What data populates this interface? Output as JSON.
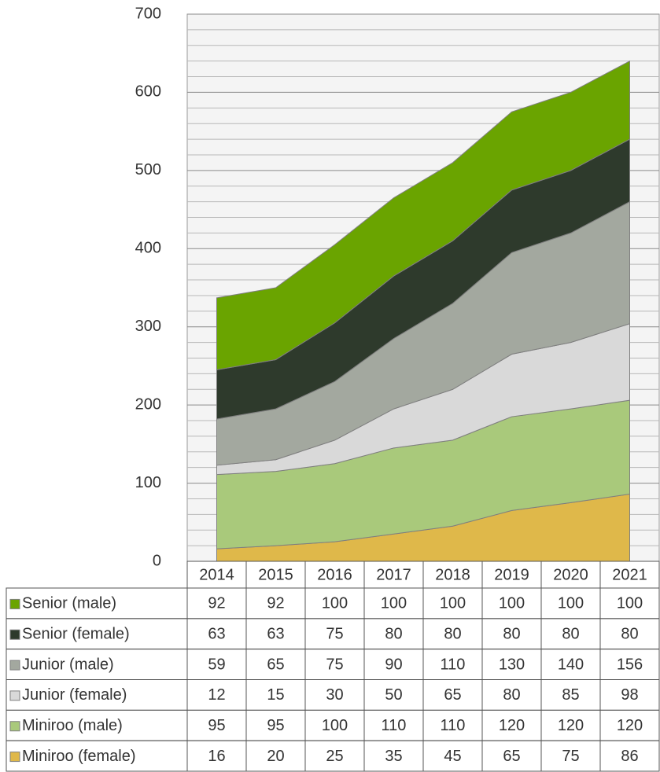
{
  "chart_data": {
    "type": "stacked_area",
    "categories": [
      "2014",
      "2015",
      "2016",
      "2017",
      "2018",
      "2019",
      "2020",
      "2021"
    ],
    "series": [
      {
        "name": "Senior (male)",
        "color": "#6aa400",
        "values": [
          92,
          92,
          100,
          100,
          100,
          100,
          100,
          100
        ]
      },
      {
        "name": "Senior (female)",
        "color": "#2e3a2c",
        "values": [
          63,
          63,
          75,
          80,
          80,
          80,
          80,
          80
        ]
      },
      {
        "name": "Junior (male)",
        "color": "#a3a89f",
        "values": [
          59,
          65,
          75,
          90,
          110,
          130,
          140,
          156
        ]
      },
      {
        "name": "Junior (female)",
        "color": "#d9d9d9",
        "values": [
          12,
          15,
          30,
          50,
          65,
          80,
          85,
          98
        ]
      },
      {
        "name": "Miniroo (male)",
        "color": "#a9c97b",
        "values": [
          95,
          95,
          100,
          110,
          110,
          120,
          120,
          120
        ]
      },
      {
        "name": "Miniroo (female)",
        "color": "#dfb84a",
        "values": [
          16,
          20,
          25,
          35,
          45,
          65,
          75,
          86
        ]
      }
    ],
    "ylim": [
      0,
      700
    ],
    "yticks": [
      0,
      100,
      200,
      300,
      400,
      500,
      600,
      700
    ],
    "yticks_minor": [
      20,
      40,
      60,
      80,
      120,
      140,
      160,
      180,
      220,
      240,
      260,
      280,
      320,
      340,
      360,
      380,
      420,
      440,
      460,
      480,
      520,
      540,
      560,
      580,
      620,
      640,
      660,
      680
    ],
    "grid": true
  }
}
